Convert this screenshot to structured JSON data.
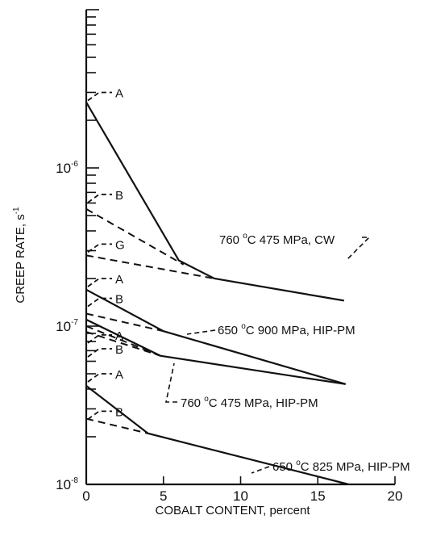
{
  "chart_data": {
    "type": "line",
    "xlabel": "COBALT CONTENT, percent",
    "ylabel": "CREEP RATE, s",
    "ylabel_sup": "-1",
    "xlim": [
      0,
      20
    ],
    "ylim": [
      1e-08,
      1e-05
    ],
    "y_scale": "log",
    "x_ticks": [
      0,
      5,
      10,
      15,
      20
    ],
    "y_tick_labels": [
      {
        "value": 1e-08,
        "base": "10",
        "exp": "-8"
      },
      {
        "value": 1e-07,
        "base": "10",
        "exp": "-7"
      },
      {
        "value": 1e-06,
        "base": "10",
        "exp": "-6"
      }
    ],
    "series": [
      {
        "name": "760 °C 475 MPa, CW",
        "deg": "o",
        "label_text": "C 475 MPa, CW",
        "label_num": "760",
        "solid": [
          [
            0,
            2.6e-06
          ],
          [
            6,
            2.6e-07
          ],
          [
            8.3,
            2e-07
          ],
          [
            16.7,
            1.45e-07
          ]
        ],
        "dashed": [
          [
            [
              0,
              5.5e-07
            ],
            [
              6.3,
              2.45e-07
            ]
          ],
          [
            [
              0,
              2.8e-07
            ],
            [
              8.3,
              2e-07
            ]
          ]
        ],
        "markers": [
          {
            "label": "A",
            "y": 3e-06
          },
          {
            "label": "B",
            "y": 6.8e-07
          },
          {
            "label": "G",
            "y": 3.3e-07
          }
        ]
      },
      {
        "name": "650 °C 900 MPa, HIP-PM",
        "deg": "o",
        "label_text": "C 900 MPa, HIP-PM",
        "label_num": "650",
        "solid": [
          [
            0,
            1.7e-07
          ],
          [
            5,
            9.3e-08
          ],
          [
            16.8,
            4.3e-08
          ]
        ],
        "dashed": [
          [
            [
              0,
              1.2e-07
            ],
            [
              5,
              9.3e-08
            ]
          ]
        ],
        "markers": [
          {
            "label": "A",
            "y": 2e-07
          },
          {
            "label": "B",
            "y": 1.5e-07
          }
        ]
      },
      {
        "name": "760 °C 475 MPa, HIP-PM",
        "deg": "o",
        "label_text": "C 475 MPa, HIP-PM",
        "label_num": "760",
        "solid": [
          [
            0,
            1.1e-07
          ],
          [
            4.8,
            6.5e-08
          ],
          [
            16.8,
            4.3e-08
          ]
        ],
        "dashed": [
          [
            [
              0,
              1e-07
            ],
            [
              4.8,
              6.5e-08
            ]
          ],
          [
            [
              0,
              9.2e-08
            ],
            [
              4.8,
              6.5e-08
            ]
          ]
        ],
        "markers": [
          {
            "label": "A",
            "y": 8.8e-08
          },
          {
            "label": "B",
            "y": 7.2e-08
          }
        ]
      },
      {
        "name": "650 °C 825 MPa, HIP-PM",
        "deg": "o",
        "label_text": "C 825 MPa, HIP-PM",
        "label_num": "650",
        "solid": [
          [
            0,
            4.2e-08
          ],
          [
            4,
            2.1e-08
          ],
          [
            17,
            1e-08
          ]
        ],
        "dashed": [
          [
            [
              0,
              2.6e-08
            ],
            [
              4,
              2.1e-08
            ]
          ]
        ],
        "markers": [
          {
            "label": "A",
            "y": 5e-08
          },
          {
            "label": "B",
            "y": 2.9e-08
          }
        ]
      }
    ]
  }
}
